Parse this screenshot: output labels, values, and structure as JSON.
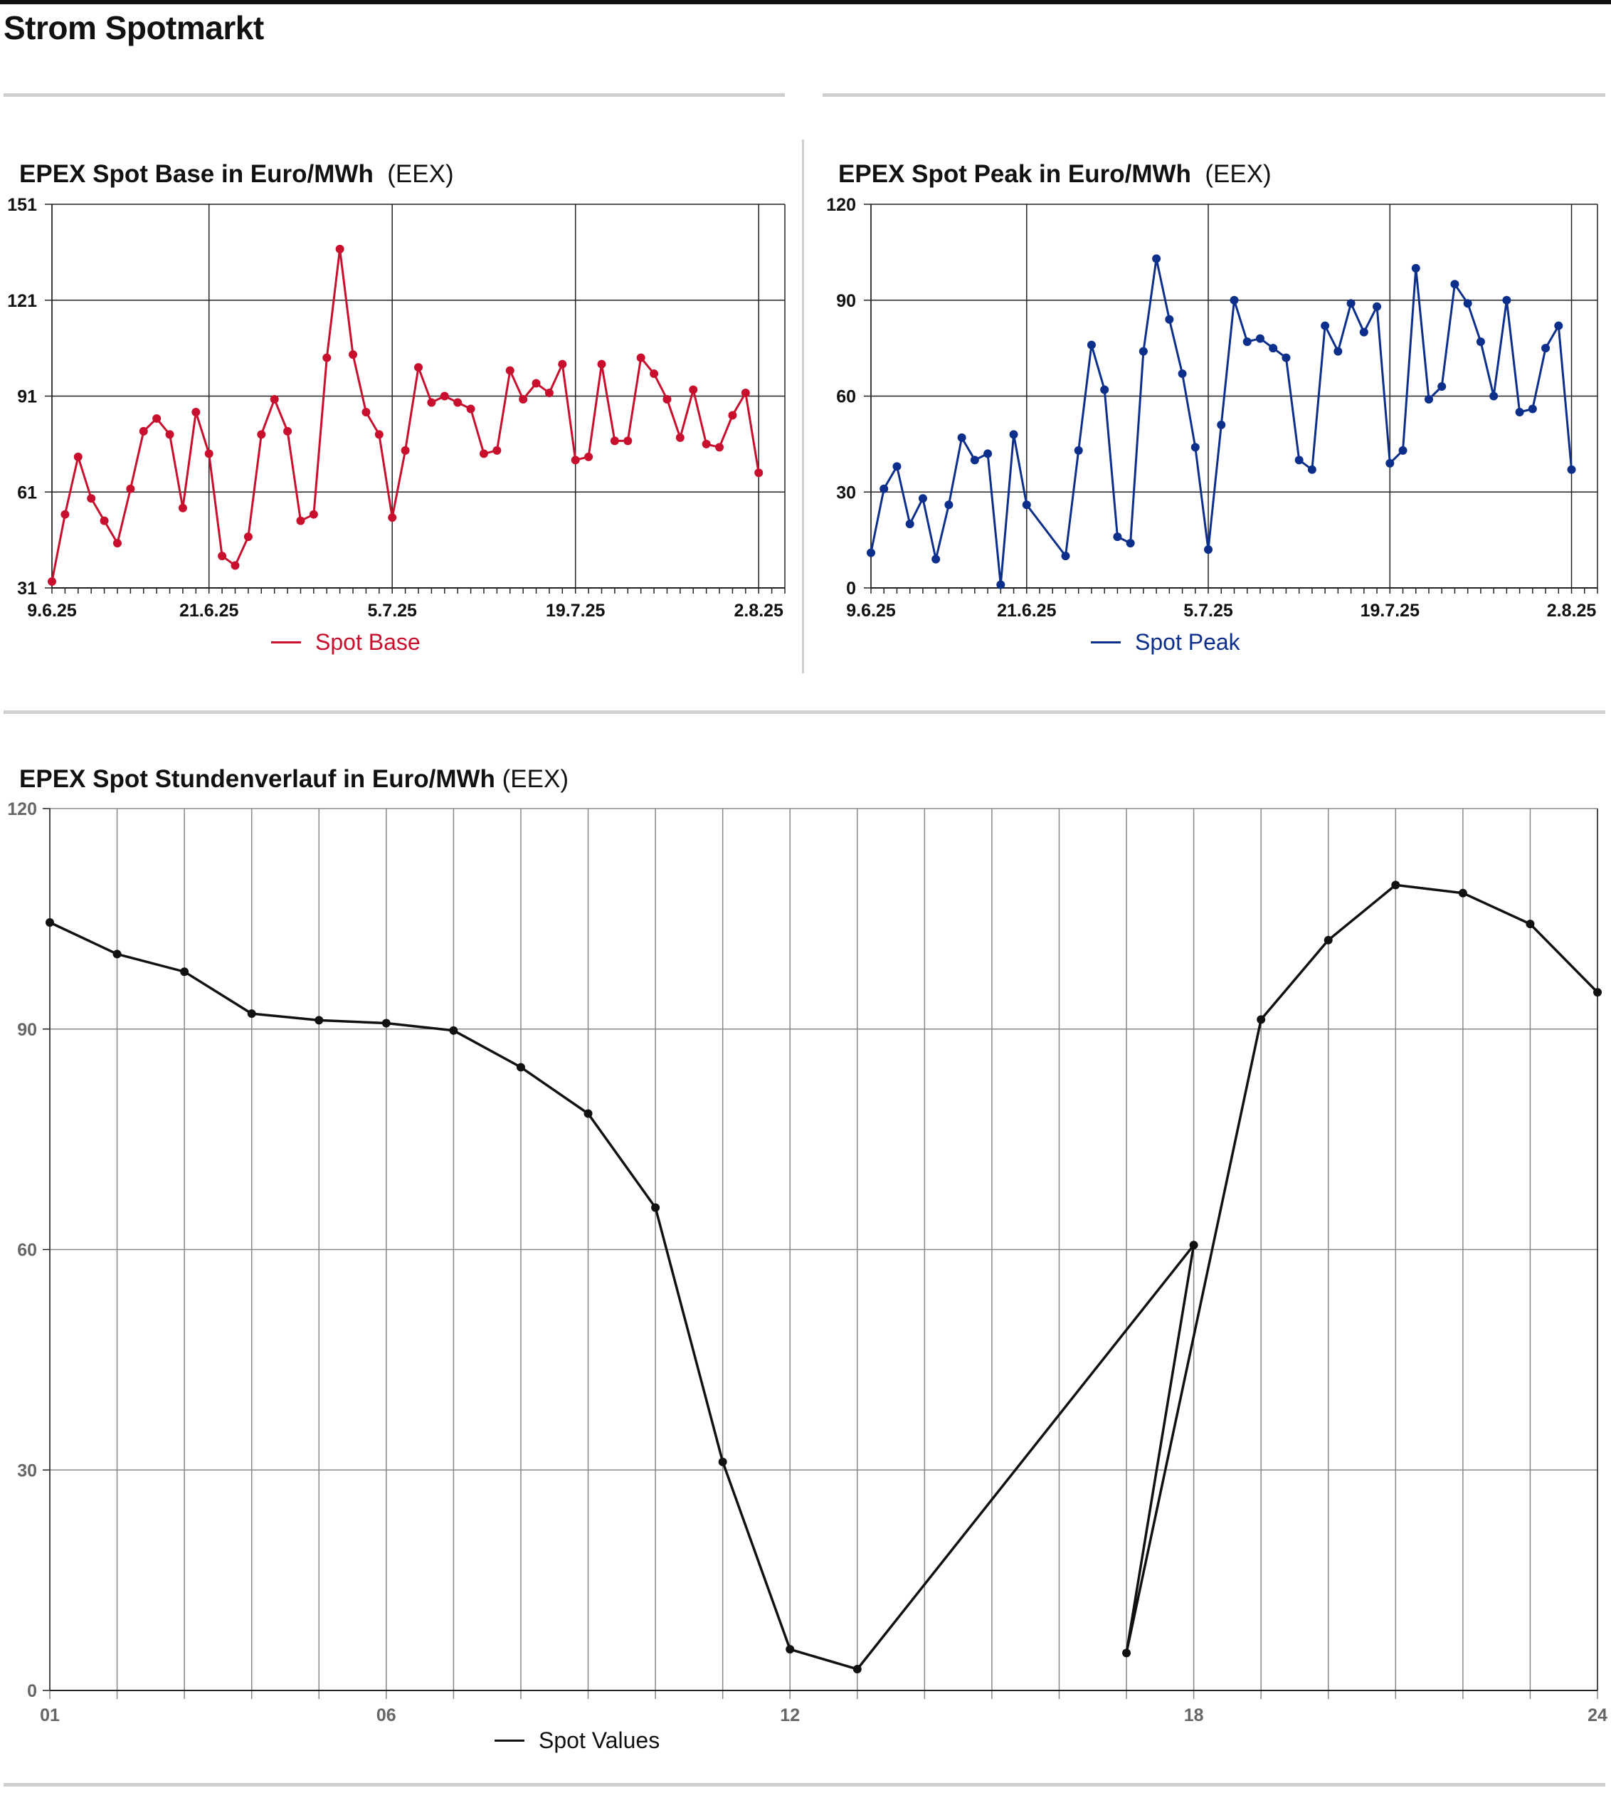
{
  "page": {
    "title": "Strom Spotmarkt"
  },
  "charts": {
    "base": {
      "title": "EPEX Spot Base in Euro/MWh",
      "source": "(EEX)",
      "legend": "Spot Base",
      "color": "#c8102e"
    },
    "peak": {
      "title": "EPEX Spot Peak in Euro/MWh",
      "source": "(EEX)",
      "legend": "Spot Peak",
      "color": "#0d2f8c"
    },
    "hourly": {
      "title": "EPEX Spot Stundenverlauf in Euro/MWh",
      "source": "(EEX)",
      "legend": "Spot Values",
      "color": "#111111"
    }
  },
  "chart_data": [
    {
      "id": "base",
      "type": "line",
      "title": "EPEX Spot Base in Euro/MWh (EEX)",
      "x_start": "9.6.25",
      "x_end": "4.8.25",
      "xticks": [
        "9.6.25",
        "21.6.25",
        "5.7.25",
        "19.7.25",
        "2.8.25"
      ],
      "yticks": [
        31,
        61,
        91,
        121,
        151
      ],
      "ylim": [
        31,
        151
      ],
      "grid": true,
      "legend": "bottom-center",
      "series": [
        {
          "name": "Spot Base",
          "values": [
            33,
            54,
            72,
            59,
            52,
            45,
            62,
            80,
            84,
            79,
            56,
            86,
            73,
            41,
            38,
            47,
            79,
            90,
            80,
            52,
            54,
            103,
            137,
            104,
            86,
            79,
            53,
            74,
            100,
            89,
            91,
            89,
            87,
            73,
            74,
            99,
            90,
            95,
            92,
            101,
            71,
            72,
            101,
            77,
            77,
            103,
            98,
            90,
            78,
            93,
            76,
            75,
            85,
            92,
            67
          ]
        }
      ]
    },
    {
      "id": "peak",
      "type": "line",
      "title": "EPEX Spot Peak in Euro/MWh (EEX)",
      "x_start": "9.6.25",
      "x_end": "4.8.25",
      "xticks": [
        "9.6.25",
        "21.6.25",
        "5.7.25",
        "19.7.25",
        "2.8.25"
      ],
      "yticks": [
        0,
        30,
        60,
        90,
        120
      ],
      "ylim": [
        0,
        120
      ],
      "grid": true,
      "legend": "bottom-center",
      "series": [
        {
          "name": "Spot Peak",
          "points": [
            [
              "9.6.25",
              11
            ],
            [
              "10.6.25",
              31
            ],
            [
              "11.6.25",
              38
            ],
            [
              "12.6.25",
              20
            ],
            [
              "13.6.25",
              28
            ],
            [
              "14.6.25",
              9
            ],
            [
              "15.6.25",
              26
            ],
            [
              "16.6.25",
              47
            ],
            [
              "17.6.25",
              40
            ],
            [
              "18.6.25",
              42
            ],
            [
              "19.6.25",
              1
            ],
            [
              "20.6.25",
              48
            ],
            [
              "21.6.25",
              26
            ],
            [
              "24.6.25",
              10
            ],
            [
              "25.6.25",
              43
            ],
            [
              "26.6.25",
              76
            ],
            [
              "27.6.25",
              62
            ],
            [
              "28.6.25",
              16
            ],
            [
              "29.6.25",
              14
            ],
            [
              "30.6.25",
              74
            ],
            [
              "1.7.25",
              103
            ],
            [
              "2.7.25",
              84
            ],
            [
              "3.7.25",
              67
            ],
            [
              "4.7.25",
              44
            ],
            [
              "5.7.25",
              12
            ],
            [
              "6.7.25",
              51
            ],
            [
              "7.7.25",
              90
            ],
            [
              "8.7.25",
              77
            ],
            [
              "9.7.25",
              78
            ],
            [
              "10.7.25",
              75
            ],
            [
              "11.7.25",
              72
            ],
            [
              "12.7.25",
              40
            ],
            [
              "13.7.25",
              37
            ],
            [
              "14.7.25",
              82
            ],
            [
              "15.7.25",
              74
            ],
            [
              "16.7.25",
              89
            ],
            [
              "17.7.25",
              80
            ],
            [
              "18.7.25",
              88
            ],
            [
              "19.7.25",
              39
            ],
            [
              "20.7.25",
              43
            ],
            [
              "21.7.25",
              100
            ],
            [
              "22.7.25",
              59
            ],
            [
              "23.7.25",
              63
            ],
            [
              "24.7.25",
              95
            ],
            [
              "25.7.25",
              89
            ],
            [
              "26.7.25",
              77
            ],
            [
              "27.7.25",
              60
            ],
            [
              "28.7.25",
              90
            ],
            [
              "29.7.25",
              55
            ],
            [
              "30.7.25",
              56
            ],
            [
              "31.7.25",
              75
            ],
            [
              "1.8.25",
              82
            ],
            [
              "2.8.25",
              37
            ]
          ]
        }
      ]
    },
    {
      "id": "hourly",
      "type": "line",
      "title": "EPEX Spot Stundenverlauf in Euro/MWh (EEX)",
      "xticks": [
        "01",
        "06",
        "12",
        "18",
        "24"
      ],
      "yticks": [
        0,
        30,
        60,
        90,
        120
      ],
      "xlim": [
        1,
        24
      ],
      "ylim": [
        0,
        120
      ],
      "grid": true,
      "legend": "bottom-center",
      "series": [
        {
          "name": "Spot Values",
          "x": [
            1,
            2,
            3,
            4,
            5,
            6,
            7,
            8,
            9,
            10,
            11,
            12,
            13,
            18,
            17,
            19,
            20,
            21,
            22,
            23,
            24
          ],
          "values": [
            104.5,
            100.2,
            97.8,
            92.1,
            91.2,
            90.8,
            89.8,
            84.8,
            78.5,
            65.7,
            31.1,
            5.6,
            2.9,
            60.6,
            5.1,
            91.3,
            102.1,
            109.6,
            108.5,
            104.3,
            95.0
          ]
        }
      ]
    }
  ]
}
